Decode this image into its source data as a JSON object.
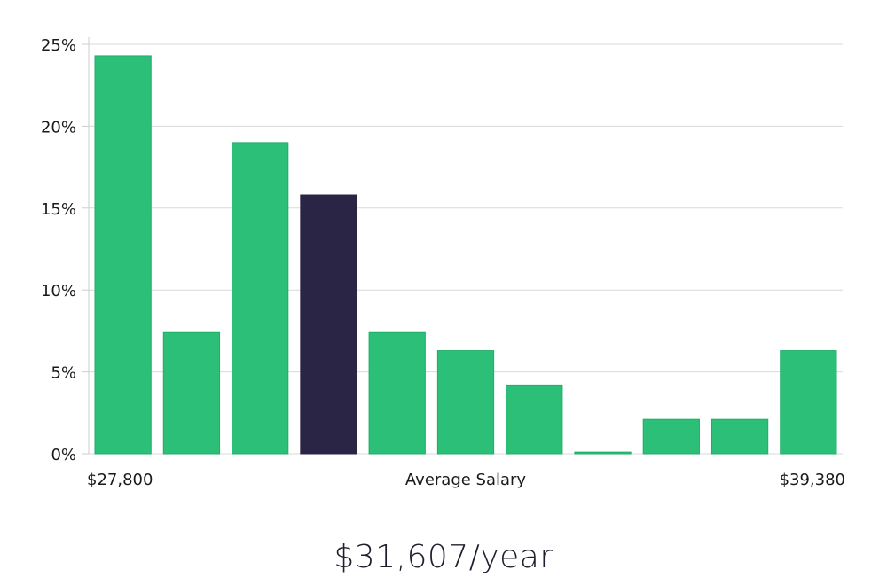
{
  "chart_data": {
    "type": "bar",
    "values": [
      24.3,
      7.4,
      19.0,
      15.8,
      7.4,
      6.3,
      4.2,
      0.1,
      2.1,
      2.1,
      6.3
    ],
    "highlight_index": 3,
    "ylim": [
      0,
      25
    ],
    "yticks": [
      0,
      5,
      10,
      15,
      20,
      25
    ],
    "ytick_labels": [
      "0%",
      "5%",
      "10%",
      "15%",
      "20%",
      "25%"
    ],
    "x_min_label": "$27,800",
    "x_center_label": "Average Salary",
    "x_max_label": "$39,380",
    "grid": true,
    "colors": {
      "bar": "#2bbf78",
      "bar_edge": "#1fae68",
      "highlight": "#2a2545",
      "grid": "#d9d9d9",
      "axis": "#cccccc"
    }
  },
  "summary": {
    "value": "$31,607/year"
  }
}
